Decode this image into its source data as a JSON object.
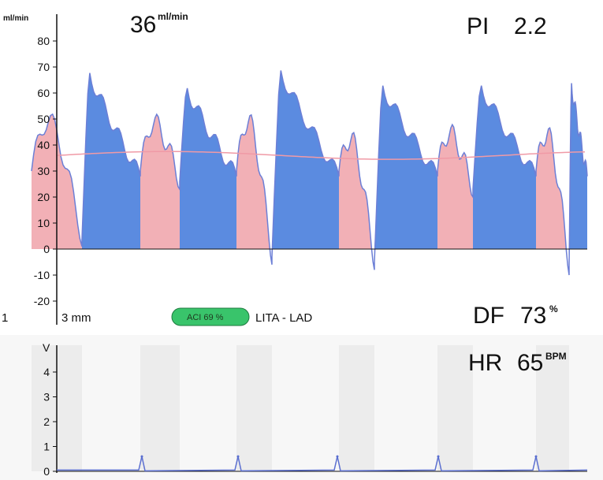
{
  "chart_data": [
    {
      "type": "area",
      "name": "flow",
      "ylabel": "ml/min",
      "ylim": [
        -20,
        90
      ],
      "yticks": [
        80,
        70,
        60,
        50,
        40,
        30,
        20,
        10,
        0,
        -10,
        -20
      ],
      "colors": {
        "systolic": "#5b8be0",
        "diastolic": "#f2b0b6",
        "outline": "#6c7fd6",
        "mean_line": "#f09aa6"
      },
      "mean_flow": 36,
      "beats": [
        {
          "start": 40,
          "end": 178,
          "split": 104,
          "peak_sys": 68,
          "peak_dia": 50,
          "min": 4
        },
        {
          "start": 178,
          "end": 300,
          "split": 228,
          "peak_sys": 62,
          "peak_dia": 49,
          "min": 26
        },
        {
          "start": 300,
          "end": 430,
          "split": 345,
          "peak_sys": 69,
          "peak_dia": 50,
          "min": -3
        },
        {
          "start": 430,
          "end": 555,
          "split": 475,
          "peak_sys": 63,
          "peak_dia": 43,
          "min": -5
        },
        {
          "start": 555,
          "end": 680,
          "split": 600,
          "peak_sys": 63,
          "peak_dia": 45,
          "min": 23
        },
        {
          "start": 680,
          "end": 745,
          "split": 722,
          "peak_sys": 64,
          "peak_dia": 45,
          "min": -7
        }
      ]
    },
    {
      "type": "line",
      "name": "ecg",
      "ylabel": "V",
      "ylim": [
        0,
        5
      ],
      "yticks": [
        4,
        3,
        2,
        1,
        0
      ],
      "spikes": [
        180,
        302,
        428,
        556,
        680
      ],
      "spike_height": 0.6
    }
  ],
  "readouts": {
    "flow_value": "36",
    "flow_unit": "ml/min",
    "pi_label": "PI",
    "pi_value": "2.2",
    "df_label": "DF",
    "df_value": "73",
    "df_unit": "%",
    "hr_label": "HR",
    "hr_value": "65",
    "hr_unit": "BPM"
  },
  "labels": {
    "y_unit": "ml/min",
    "scale": "3 mm",
    "left_marker": "1",
    "aci_badge": "ACI 69 %",
    "vessel": "LITA - LAD",
    "v_unit": "V"
  }
}
